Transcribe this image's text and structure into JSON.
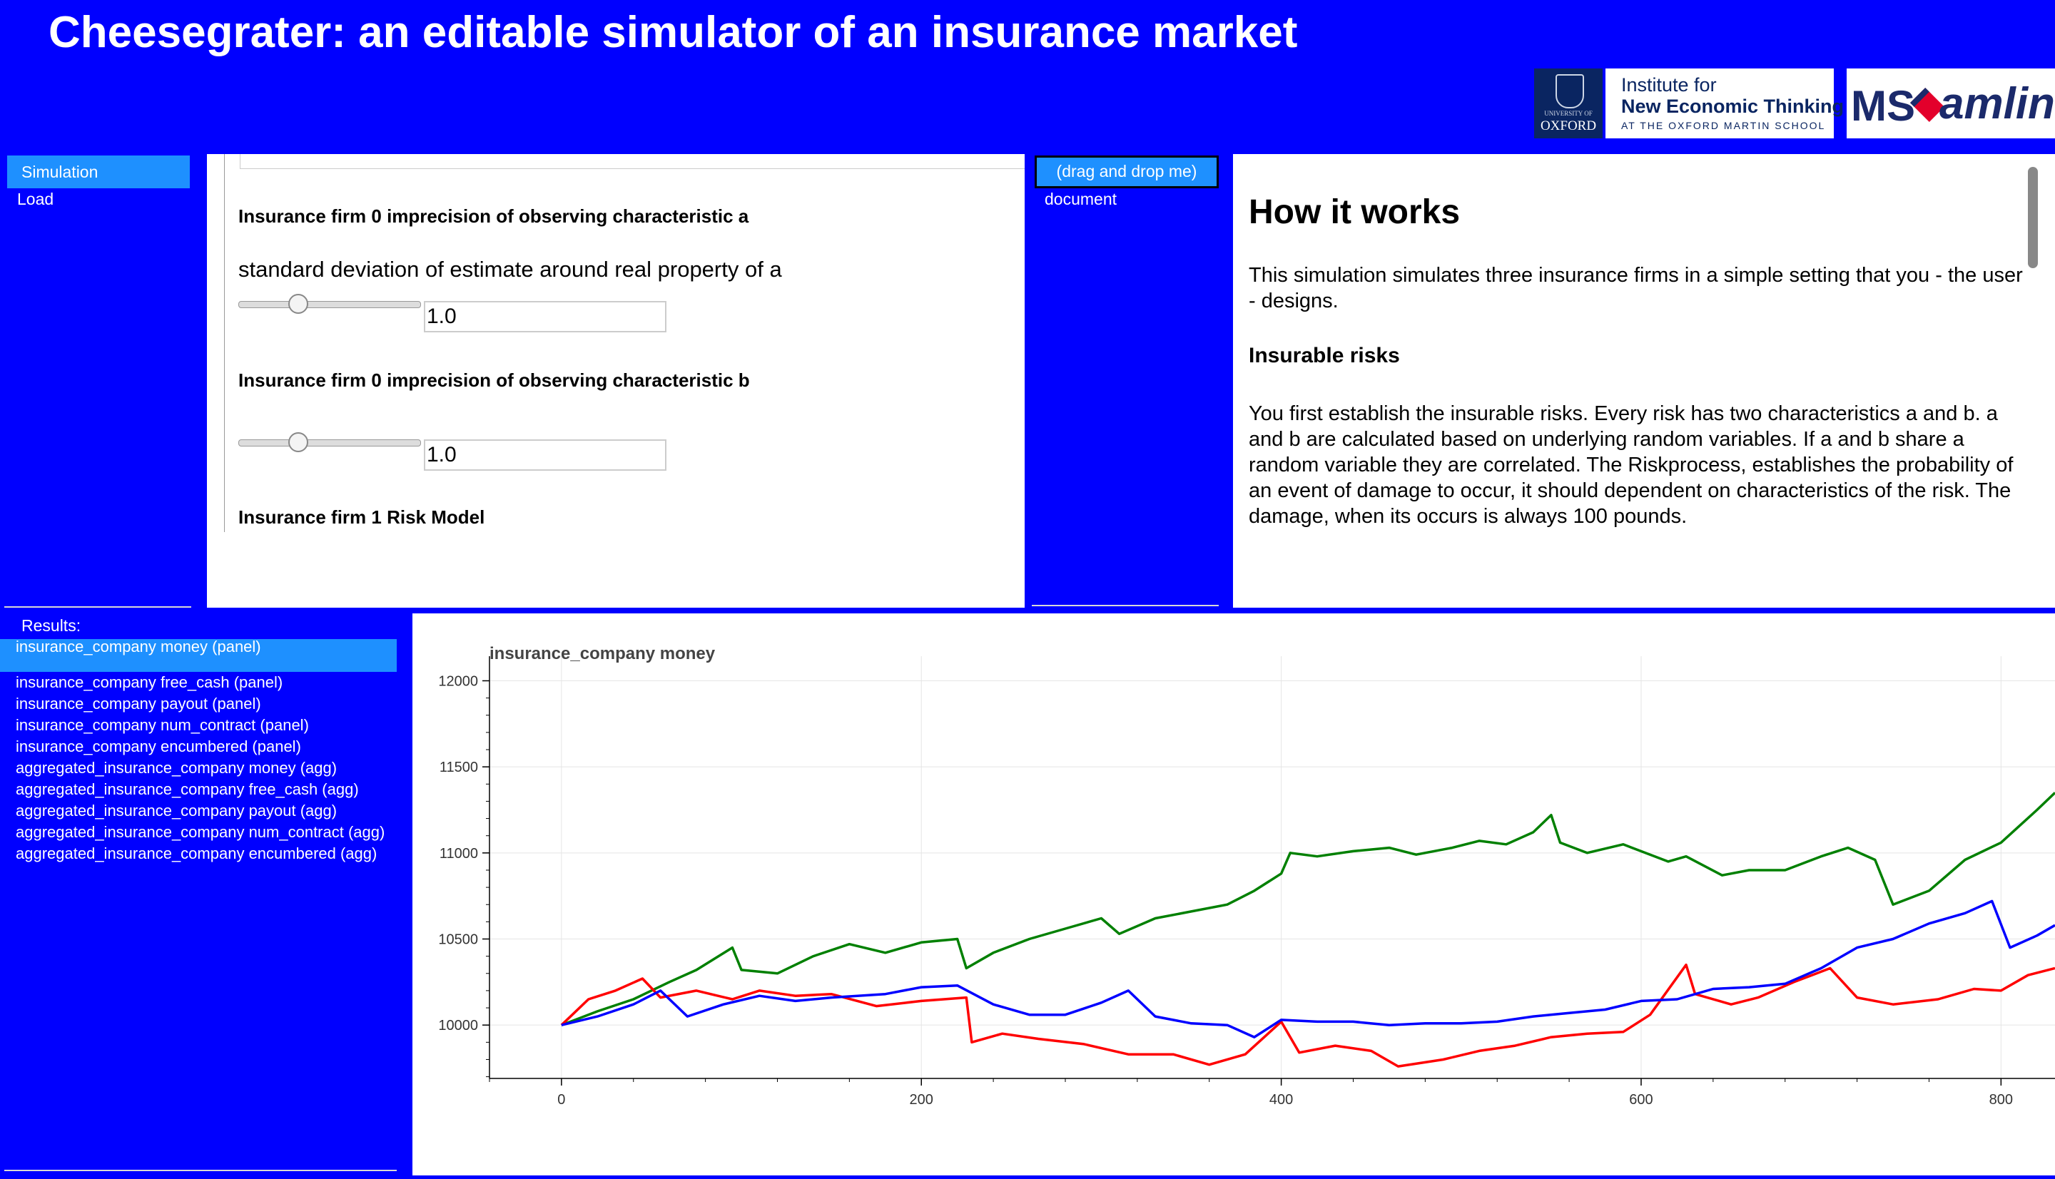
{
  "title": "Cheesegrater: an editable simulator of an insurance market",
  "logos": {
    "oxford_small": "UNIVERSITY OF",
    "oxford": "OXFORD",
    "inet_line1": "Institute for",
    "inet_line2": "New Economic Thinking",
    "inet_line3": "AT THE OXFORD MARTIN SCHOOL",
    "ms": "MS",
    "amlin": "amlin"
  },
  "left_tabs": [
    "Simulation",
    "Load"
  ],
  "settings": {
    "label_a": "Insurance firm 0 imprecision of observing characteristic a",
    "desc_a": "standard deviation of estimate around real property of a",
    "value_a": "1.0",
    "slider_a_fraction": 0.33,
    "label_b": "Insurance firm 0 imprecision of observing characteristic b",
    "value_b": "1.0",
    "slider_b_fraction": 0.33,
    "label_next": "Insurance firm 1 Risk Model"
  },
  "doc_tabs": [
    "(drag and drop me)",
    "document"
  ],
  "doc": {
    "heading": "How it works",
    "intro": "This simulation simulates three insurance firms in a simple setting that you - the user - designs.",
    "subheading": "Insurable risks",
    "body": "You first establish the insurable risks. Every risk has two characteristics a and b. a and b are calculated based on underlying random variables. If a and b share a random variable they are correlated. The Riskprocess, establishes the probability of an event of damage to occur, it should dependent on characteristics of the risk. The damage, when its occurs is always 100 pounds."
  },
  "results": {
    "label": "Results:",
    "items": [
      "insurance_company money (panel)",
      "insurance_company free_cash (panel)",
      "insurance_company payout (panel)",
      "insurance_company num_contract (panel)",
      "insurance_company encumbered (panel)",
      "aggregated_insurance_company money (agg)",
      "aggregated_insurance_company free_cash (agg)",
      "aggregated_insurance_company payout (agg)",
      "aggregated_insurance_company num_contract (agg)",
      "aggregated_insurance_company encumbered (agg)"
    ],
    "selected_index": 0
  },
  "chart_data": {
    "type": "line",
    "title": "insurance_company money",
    "xlabel": "",
    "ylabel": "",
    "xlim": [
      -40,
      830
    ],
    "ylim": [
      9690,
      12060
    ],
    "xticks": [
      0,
      200,
      400,
      600,
      800
    ],
    "yticks": [
      10000,
      10500,
      11000,
      11500,
      12000
    ],
    "grid": true,
    "series": [
      {
        "color": "#008000",
        "points": [
          [
            0,
            10000
          ],
          [
            20,
            10080
          ],
          [
            40,
            10150
          ],
          [
            60,
            10250
          ],
          [
            75,
            10320
          ],
          [
            95,
            10450
          ],
          [
            100,
            10320
          ],
          [
            120,
            10300
          ],
          [
            140,
            10400
          ],
          [
            160,
            10470
          ],
          [
            180,
            10420
          ],
          [
            200,
            10480
          ],
          [
            220,
            10500
          ],
          [
            225,
            10330
          ],
          [
            240,
            10420
          ],
          [
            260,
            10500
          ],
          [
            280,
            10560
          ],
          [
            300,
            10620
          ],
          [
            310,
            10530
          ],
          [
            330,
            10620
          ],
          [
            350,
            10660
          ],
          [
            370,
            10700
          ],
          [
            385,
            10780
          ],
          [
            400,
            10880
          ],
          [
            405,
            11000
          ],
          [
            420,
            10980
          ],
          [
            440,
            11010
          ],
          [
            460,
            11030
          ],
          [
            475,
            10990
          ],
          [
            495,
            11030
          ],
          [
            510,
            11070
          ],
          [
            525,
            11050
          ],
          [
            540,
            11120
          ],
          [
            550,
            11220
          ],
          [
            555,
            11060
          ],
          [
            570,
            11000
          ],
          [
            590,
            11050
          ],
          [
            615,
            10950
          ],
          [
            625,
            10980
          ],
          [
            645,
            10870
          ],
          [
            660,
            10900
          ],
          [
            680,
            10900
          ],
          [
            700,
            10980
          ],
          [
            715,
            11030
          ],
          [
            730,
            10960
          ],
          [
            740,
            10700
          ],
          [
            760,
            10780
          ],
          [
            780,
            10960
          ],
          [
            800,
            11060
          ],
          [
            820,
            11250
          ],
          [
            830,
            11350
          ]
        ]
      },
      {
        "color": "#ff0000",
        "points": [
          [
            0,
            10000
          ],
          [
            15,
            10150
          ],
          [
            30,
            10200
          ],
          [
            45,
            10270
          ],
          [
            55,
            10160
          ],
          [
            75,
            10200
          ],
          [
            95,
            10150
          ],
          [
            110,
            10200
          ],
          [
            130,
            10170
          ],
          [
            150,
            10180
          ],
          [
            175,
            10110
          ],
          [
            200,
            10140
          ],
          [
            225,
            10160
          ],
          [
            228,
            9900
          ],
          [
            245,
            9950
          ],
          [
            265,
            9920
          ],
          [
            290,
            9890
          ],
          [
            315,
            9830
          ],
          [
            340,
            9830
          ],
          [
            360,
            9770
          ],
          [
            380,
            9830
          ],
          [
            400,
            10020
          ],
          [
            410,
            9840
          ],
          [
            430,
            9880
          ],
          [
            450,
            9850
          ],
          [
            465,
            9760
          ],
          [
            490,
            9800
          ],
          [
            510,
            9850
          ],
          [
            530,
            9880
          ],
          [
            550,
            9930
          ],
          [
            570,
            9950
          ],
          [
            590,
            9960
          ],
          [
            605,
            10060
          ],
          [
            625,
            10350
          ],
          [
            630,
            10180
          ],
          [
            650,
            10120
          ],
          [
            665,
            10160
          ],
          [
            685,
            10250
          ],
          [
            705,
            10330
          ],
          [
            720,
            10160
          ],
          [
            740,
            10120
          ],
          [
            765,
            10150
          ],
          [
            785,
            10210
          ],
          [
            800,
            10200
          ],
          [
            815,
            10290
          ],
          [
            830,
            10330
          ]
        ]
      },
      {
        "color": "#0000ff",
        "points": [
          [
            0,
            10000
          ],
          [
            20,
            10050
          ],
          [
            40,
            10120
          ],
          [
            55,
            10200
          ],
          [
            70,
            10050
          ],
          [
            90,
            10120
          ],
          [
            110,
            10170
          ],
          [
            130,
            10140
          ],
          [
            150,
            10160
          ],
          [
            180,
            10180
          ],
          [
            200,
            10220
          ],
          [
            220,
            10230
          ],
          [
            240,
            10120
          ],
          [
            260,
            10060
          ],
          [
            280,
            10060
          ],
          [
            300,
            10130
          ],
          [
            315,
            10200
          ],
          [
            330,
            10050
          ],
          [
            350,
            10010
          ],
          [
            370,
            10000
          ],
          [
            385,
            9930
          ],
          [
            400,
            10030
          ],
          [
            420,
            10020
          ],
          [
            440,
            10020
          ],
          [
            460,
            10000
          ],
          [
            480,
            10010
          ],
          [
            500,
            10010
          ],
          [
            520,
            10020
          ],
          [
            540,
            10050
          ],
          [
            560,
            10070
          ],
          [
            580,
            10090
          ],
          [
            600,
            10140
          ],
          [
            620,
            10150
          ],
          [
            640,
            10210
          ],
          [
            660,
            10220
          ],
          [
            680,
            10240
          ],
          [
            700,
            10330
          ],
          [
            720,
            10450
          ],
          [
            740,
            10500
          ],
          [
            760,
            10590
          ],
          [
            780,
            10650
          ],
          [
            795,
            10720
          ],
          [
            805,
            10450
          ],
          [
            820,
            10520
          ],
          [
            830,
            10580
          ]
        ]
      }
    ]
  }
}
